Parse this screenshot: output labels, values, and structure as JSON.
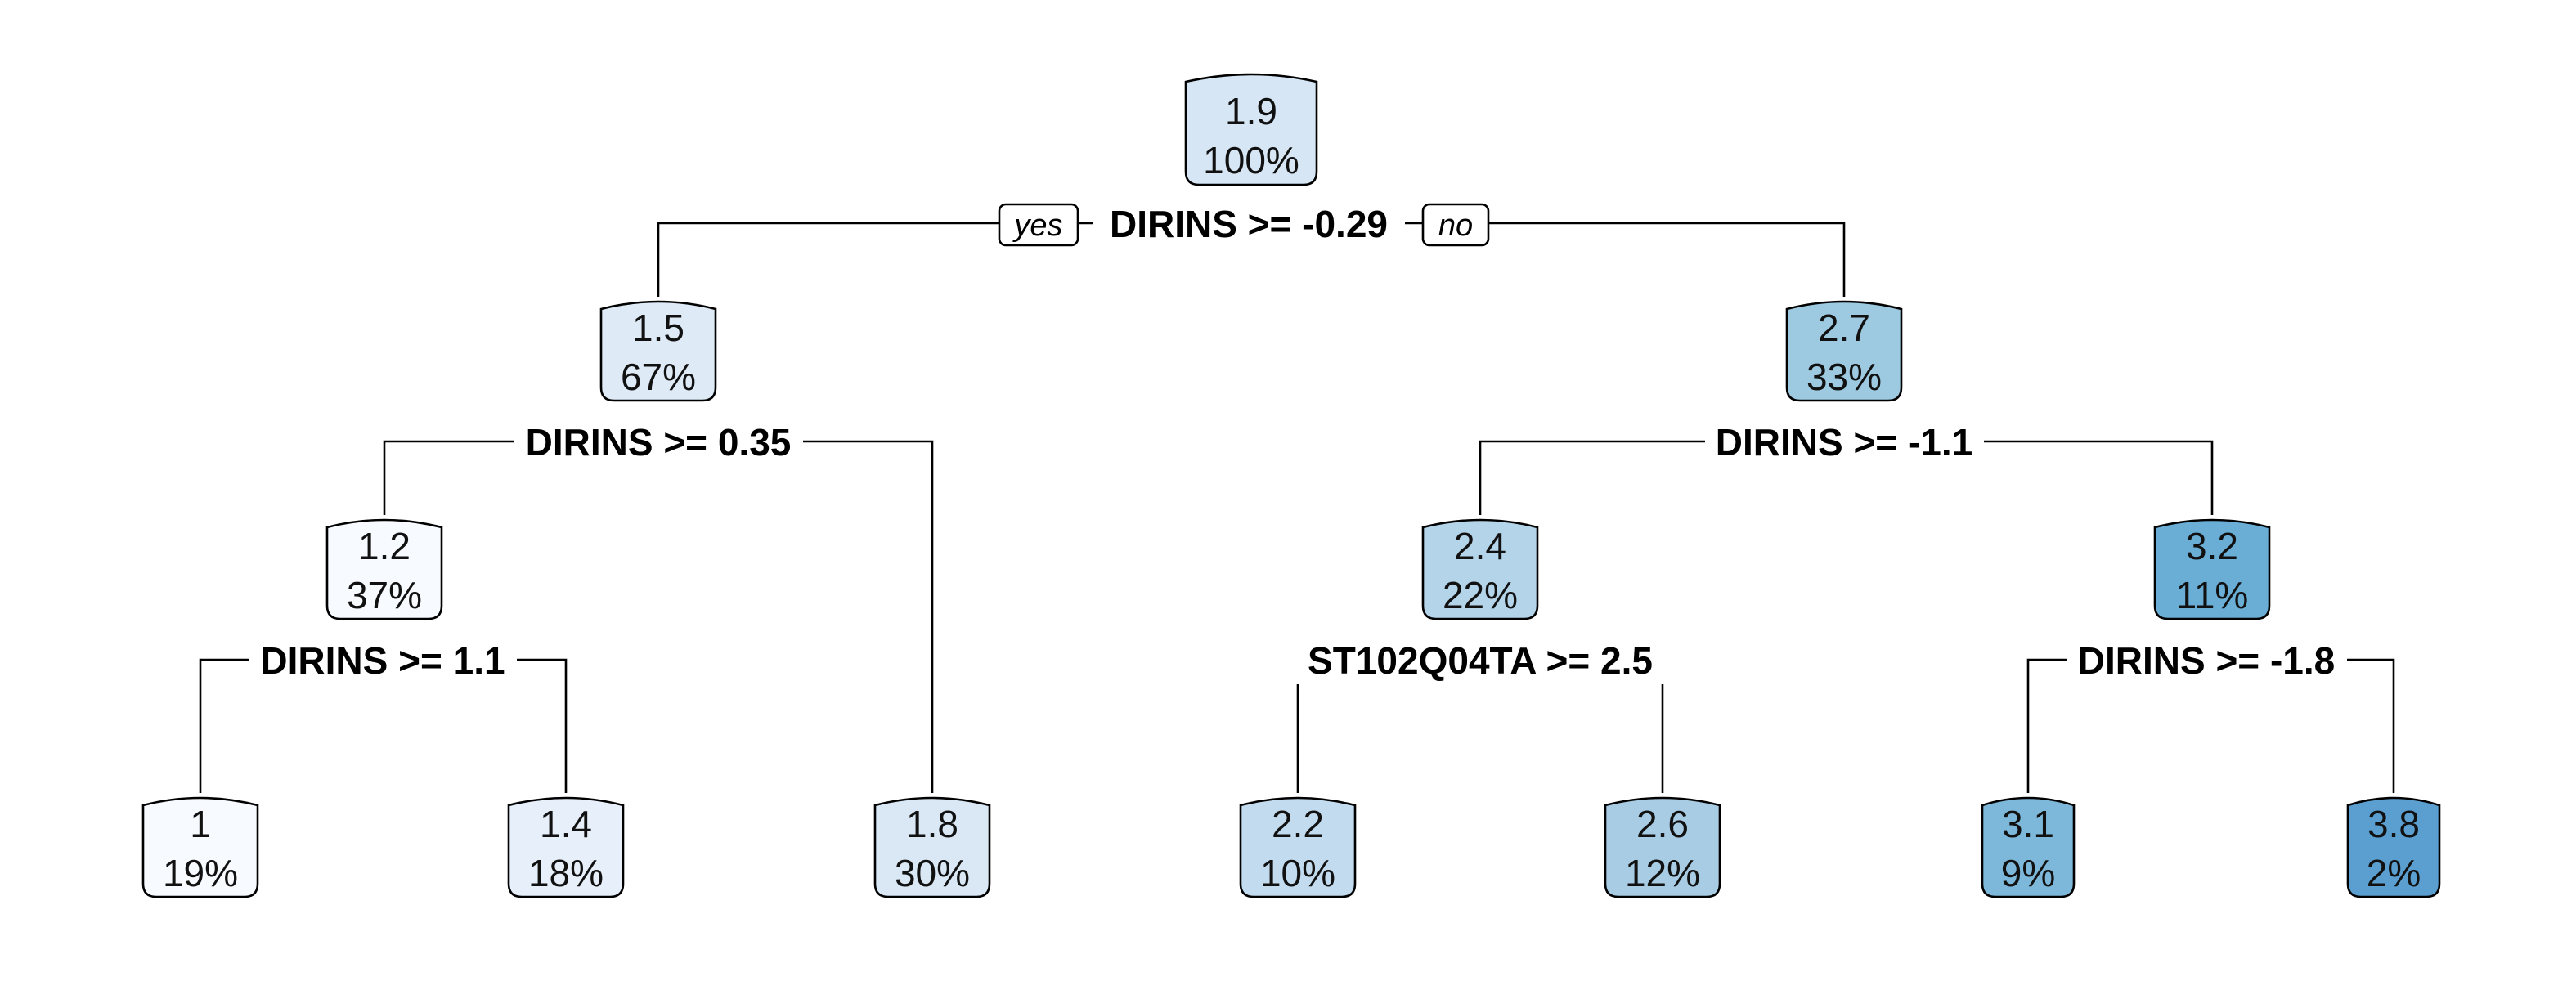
{
  "tree": {
    "root": {
      "value": "1.9",
      "percent": "100%",
      "color": "#d6e6f4"
    },
    "root_split": "DIRINS >= -0.29",
    "yes_label": "yes",
    "no_label": "no",
    "n_left": {
      "value": "1.5",
      "percent": "67%",
      "color": "#deebf7"
    },
    "n_left_split": "DIRINS >= 0.35",
    "n_right": {
      "value": "2.7",
      "percent": "33%",
      "color": "#9ecae1"
    },
    "n_right_split": "DIRINS >= -1.1",
    "n_ll": {
      "value": "1.2",
      "percent": "37%",
      "color": "#f7fbff"
    },
    "n_ll_split": "DIRINS >= 1.1",
    "n_rl": {
      "value": "2.4",
      "percent": "22%",
      "color": "#b4d4ea"
    },
    "n_rl_split": "ST102Q04TA >= 2.5",
    "n_rr": {
      "value": "3.2",
      "percent": "11%",
      "color": "#6aaed6"
    },
    "n_rr_split": "DIRINS >= -1.8",
    "leaf_1": {
      "value": "1",
      "percent": "19%",
      "color": "#f7fbff"
    },
    "leaf_2": {
      "value": "1.4",
      "percent": "18%",
      "color": "#e7f0fa"
    },
    "leaf_3": {
      "value": "1.8",
      "percent": "30%",
      "color": "#dae8f5"
    },
    "leaf_4": {
      "value": "2.2",
      "percent": "10%",
      "color": "#c2dbee"
    },
    "leaf_5": {
      "value": "2.6",
      "percent": "12%",
      "color": "#a7cce4"
    },
    "leaf_6": {
      "value": "3.1",
      "percent": "9%",
      "color": "#7db8da"
    },
    "leaf_7": {
      "value": "3.8",
      "percent": "2%",
      "color": "#5a9fcf"
    }
  }
}
